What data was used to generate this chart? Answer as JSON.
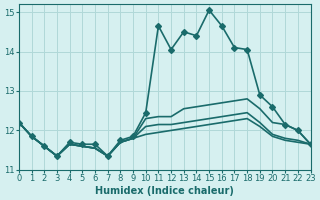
{
  "xlabel": "Humidex (Indice chaleur)",
  "ylabel": "",
  "xlim": [
    0,
    23
  ],
  "ylim": [
    11,
    15.2
  ],
  "yticks": [
    11,
    12,
    13,
    14,
    15
  ],
  "xticks": [
    0,
    1,
    2,
    3,
    4,
    5,
    6,
    7,
    8,
    9,
    10,
    11,
    12,
    13,
    14,
    15,
    16,
    17,
    18,
    19,
    20,
    21,
    22,
    23
  ],
  "bg_color": "#d6f0f0",
  "line_color": "#1a6b6b",
  "lines": [
    {
      "x": [
        0,
        1,
        2,
        3,
        4,
        5,
        6,
        7,
        8,
        9,
        10,
        11,
        12,
        13,
        14,
        15,
        16,
        17,
        18,
        19,
        20,
        21,
        22,
        23
      ],
      "y": [
        12.2,
        11.85,
        11.6,
        11.35,
        11.7,
        11.65,
        11.65,
        11.35,
        11.75,
        11.85,
        12.45,
        14.65,
        14.05,
        14.5,
        14.4,
        15.05,
        14.65,
        14.1,
        14.05,
        12.9,
        12.6,
        12.15,
        12.0,
        11.65
      ],
      "marker": "D",
      "markersize": 3,
      "linewidth": 1.2
    },
    {
      "x": [
        0,
        1,
        2,
        3,
        4,
        5,
        6,
        7,
        8,
        9,
        10,
        11,
        12,
        13,
        14,
        15,
        16,
        17,
        18,
        19,
        20,
        21,
        22,
        23
      ],
      "y": [
        12.2,
        11.85,
        11.6,
        11.35,
        11.65,
        11.6,
        11.55,
        11.35,
        11.7,
        11.8,
        12.3,
        12.35,
        12.35,
        12.55,
        12.6,
        12.65,
        12.7,
        12.75,
        12.8,
        12.55,
        12.2,
        12.15,
        12.0,
        11.65
      ],
      "marker": null,
      "markersize": 0,
      "linewidth": 1.2
    },
    {
      "x": [
        0,
        1,
        2,
        3,
        4,
        5,
        6,
        7,
        8,
        9,
        10,
        11,
        12,
        13,
        14,
        15,
        16,
        17,
        18,
        19,
        20,
        21,
        22,
        23
      ],
      "y": [
        12.2,
        11.85,
        11.6,
        11.35,
        11.65,
        11.6,
        11.55,
        11.35,
        11.7,
        11.8,
        12.1,
        12.15,
        12.15,
        12.2,
        12.25,
        12.3,
        12.35,
        12.4,
        12.45,
        12.2,
        11.9,
        11.8,
        11.75,
        11.65
      ],
      "marker": null,
      "markersize": 0,
      "linewidth": 1.2
    },
    {
      "x": [
        0,
        1,
        2,
        3,
        4,
        5,
        6,
        7,
        8,
        9,
        10,
        11,
        12,
        13,
        14,
        15,
        16,
        17,
        18,
        19,
        20,
        21,
        22,
        23
      ],
      "y": [
        12.2,
        11.85,
        11.6,
        11.35,
        11.65,
        11.6,
        11.55,
        11.35,
        11.7,
        11.8,
        11.9,
        11.95,
        12.0,
        12.05,
        12.1,
        12.15,
        12.2,
        12.25,
        12.3,
        12.1,
        11.85,
        11.75,
        11.7,
        11.65
      ],
      "marker": null,
      "markersize": 0,
      "linewidth": 1.2
    }
  ],
  "grid_color": "#b0d8d8",
  "tick_fontsize": 6,
  "label_fontsize": 7
}
